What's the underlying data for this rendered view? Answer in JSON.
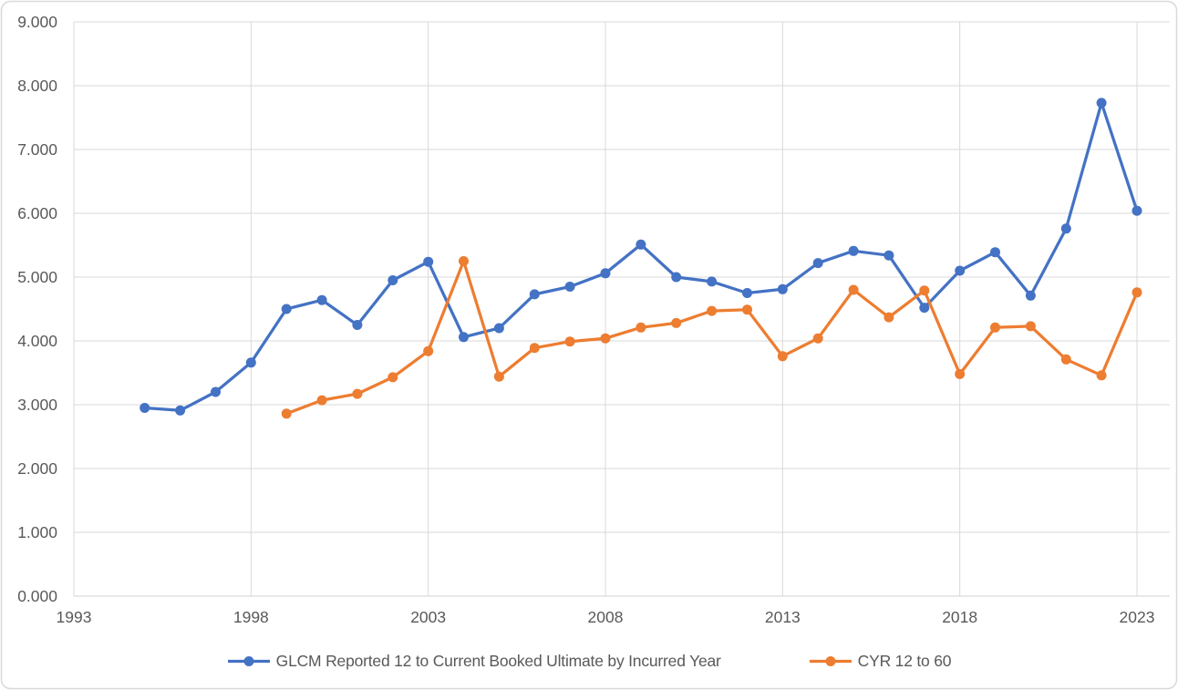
{
  "chart_data": {
    "type": "line",
    "title": "",
    "xlabel": "",
    "ylabel": "",
    "grid": true,
    "legend_position": "bottom",
    "ylim": [
      0,
      9
    ],
    "ytick_step": 1,
    "yticklabels": [
      "0.000",
      "1.000",
      "2.000",
      "3.000",
      "4.000",
      "5.000",
      "6.000",
      "7.000",
      "8.000",
      "9.000"
    ],
    "xlim": [
      1993,
      2023.93
    ],
    "xticks": [
      1993,
      1998,
      2003,
      2008,
      2013,
      2018,
      2023
    ],
    "xticklabels": [
      "1993",
      "1998",
      "2003",
      "2008",
      "2013",
      "2018",
      "2023"
    ],
    "colors": {
      "grid": "#D9D9D9",
      "axis": "#D9D9D9",
      "border": "#D9D9D9",
      "tick_text": "#595959",
      "legend_text": "#595959",
      "background": "#FFFFFF"
    },
    "series": [
      {
        "name": "GLCM Reported 12 to Current Booked Ultimate by Incurred Year",
        "color": "#4472C4",
        "marker": "circle",
        "x": [
          1995,
          1996,
          1997,
          1998,
          1999,
          2000,
          2001,
          2002,
          2003,
          2004,
          2005,
          2006,
          2007,
          2008,
          2009,
          2010,
          2011,
          2012,
          2013,
          2014,
          2015,
          2016,
          2017,
          2018,
          2019,
          2020,
          2021,
          2022,
          2023
        ],
        "values": [
          2.95,
          2.91,
          3.2,
          3.66,
          4.5,
          4.64,
          4.25,
          4.95,
          5.24,
          4.06,
          4.2,
          4.73,
          4.85,
          5.06,
          5.51,
          5.0,
          4.93,
          4.75,
          4.81,
          5.22,
          5.41,
          5.34,
          4.52,
          5.1,
          5.39,
          4.71,
          5.76,
          7.73,
          6.04
        ]
      },
      {
        "name": "CYR 12 to 60",
        "color": "#ED7D31",
        "marker": "circle",
        "x": [
          1999,
          2000,
          2001,
          2002,
          2003,
          2004,
          2005,
          2006,
          2007,
          2008,
          2009,
          2010,
          2011,
          2012,
          2013,
          2014,
          2015,
          2016,
          2017,
          2018,
          2019,
          2020,
          2021,
          2022,
          2023
        ],
        "values": [
          2.86,
          3.07,
          3.17,
          3.43,
          3.84,
          5.25,
          3.44,
          3.89,
          3.99,
          4.04,
          4.21,
          4.28,
          4.47,
          4.49,
          3.76,
          4.04,
          4.8,
          4.37,
          4.79,
          3.48,
          4.21,
          4.23,
          3.71,
          3.46,
          4.76
        ]
      }
    ]
  }
}
